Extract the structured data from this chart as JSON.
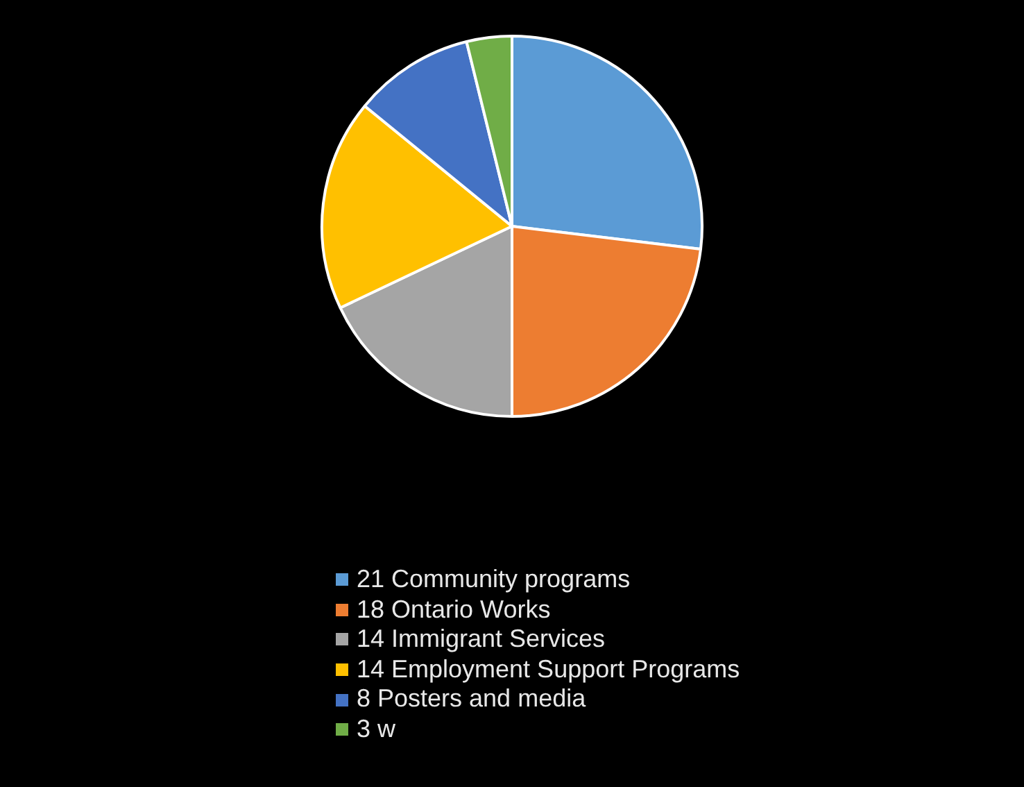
{
  "chart_data": {
    "type": "pie",
    "categories": [
      "21 Community programs",
      "18 Ontario Works",
      "14 Immigrant Services",
      "14 Employment Support Programs",
      "8 Posters and media",
      "3 w"
    ],
    "values": [
      21,
      18,
      14,
      14,
      8,
      3
    ],
    "colors": [
      "#5b9bd5",
      "#ed7d31",
      "#a5a5a5",
      "#ffc000",
      "#4472c4",
      "#70ad47"
    ],
    "legend": "bottom"
  }
}
